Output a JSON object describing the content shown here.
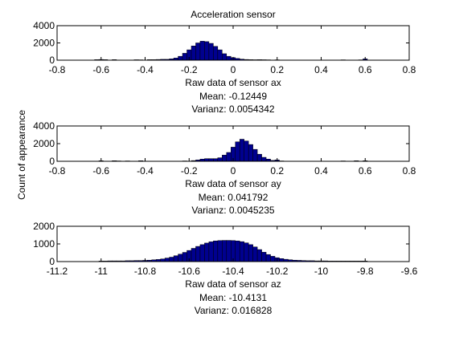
{
  "figure": {
    "title": "Acceleration sensor",
    "ylabel": "Count of appearance"
  },
  "chart_data": [
    {
      "type": "bar",
      "title": "Acceleration sensor",
      "xlabel": "Raw data of sensor ax",
      "ylabel": "Count of appearance",
      "stats": [
        "Mean: -0.12449",
        "Varianz: 0.0054342"
      ],
      "xlim": [
        -0.8,
        0.8
      ],
      "ylim": [
        0,
        4000
      ],
      "xticks": [
        -0.8,
        -0.6,
        -0.4,
        -0.2,
        0,
        0.2,
        0.4,
        0.6,
        0.8
      ],
      "xtick_labels": [
        "-0.8",
        "-0.6",
        "-0.4",
        "-0.2",
        "0",
        "0.2",
        "0.4",
        "0.6",
        "0.8"
      ],
      "yticks": [
        0,
        2000,
        4000
      ],
      "ytick_labels": [
        "0",
        "2000",
        "4000"
      ],
      "bar_color": "#00008F",
      "bin_width": 0.02,
      "x": [
        -0.62,
        -0.6,
        -0.58,
        -0.54,
        -0.44,
        -0.42,
        -0.38,
        -0.36,
        -0.34,
        -0.32,
        -0.3,
        -0.28,
        -0.26,
        -0.24,
        -0.22,
        -0.2,
        -0.18,
        -0.16,
        -0.14,
        -0.12,
        -0.1,
        -0.08,
        -0.06,
        -0.04,
        -0.02,
        0,
        0.02,
        0.04,
        0.06,
        0.08,
        0.1,
        0.12,
        0.14,
        0.16,
        0.2,
        0.5,
        0.58,
        0.6
      ],
      "values": [
        60,
        80,
        60,
        60,
        50,
        40,
        60,
        60,
        80,
        100,
        100,
        150,
        250,
        450,
        800,
        1200,
        1650,
        2000,
        2200,
        2150,
        1950,
        1600,
        1200,
        750,
        450,
        300,
        200,
        120,
        80,
        60,
        50,
        60,
        50,
        40,
        40,
        40,
        40,
        150
      ]
    },
    {
      "type": "bar",
      "xlabel": "Raw data of sensor ay",
      "stats": [
        "Mean: 0.041792",
        "Varianz: 0.0045235"
      ],
      "xlim": [
        -0.8,
        0.8
      ],
      "ylim": [
        0,
        4000
      ],
      "xticks": [
        -0.8,
        -0.6,
        -0.4,
        -0.2,
        0,
        0.2,
        0.4,
        0.6,
        0.8
      ],
      "xtick_labels": [
        "-0.8",
        "-0.6",
        "-0.4",
        "-0.2",
        "0",
        "0.2",
        "0.4",
        "0.6",
        "0.8"
      ],
      "yticks": [
        0,
        2000,
        4000
      ],
      "ytick_labels": [
        "0",
        "2000",
        "4000"
      ],
      "bar_color": "#00008F",
      "bin_width": 0.02,
      "x": [
        -0.6,
        -0.54,
        -0.52,
        -0.48,
        -0.42,
        -0.22,
        -0.18,
        -0.16,
        -0.14,
        -0.12,
        -0.1,
        -0.08,
        -0.06,
        -0.04,
        -0.02,
        0,
        0.02,
        0.04,
        0.06,
        0.08,
        0.1,
        0.12,
        0.14,
        0.16,
        0.18,
        0.2,
        0.22,
        0.5,
        0.56,
        0.6
      ],
      "values": [
        60,
        60,
        40,
        40,
        60,
        40,
        80,
        150,
        250,
        300,
        300,
        300,
        400,
        700,
        1000,
        1600,
        2200,
        2500,
        2300,
        1900,
        1350,
        800,
        450,
        250,
        100,
        150,
        40,
        40,
        60,
        60
      ]
    },
    {
      "type": "bar",
      "xlabel": "Raw data of sensor az",
      "stats": [
        "Mean: -10.4131",
        "Varianz: 0.016828"
      ],
      "xlim": [
        -11.2,
        -9.6
      ],
      "ylim": [
        0,
        2000
      ],
      "xticks": [
        -11.2,
        -11,
        -10.8,
        -10.6,
        -10.4,
        -10.2,
        -10,
        -9.8,
        -9.6
      ],
      "xtick_labels": [
        "-11.2",
        "-11",
        "-10.8",
        "-10.6",
        "-10.4",
        "-10.2",
        "-10",
        "-9.8",
        "-9.6"
      ],
      "yticks": [
        0,
        1000,
        2000
      ],
      "ytick_labels": [
        "0",
        "1000",
        "2000"
      ],
      "bar_color": "#00008F",
      "bin_width": 0.02,
      "x": [
        -11.0,
        -10.98,
        -10.96,
        -10.94,
        -10.92,
        -10.9,
        -10.88,
        -10.86,
        -10.84,
        -10.82,
        -10.8,
        -10.78,
        -10.76,
        -10.74,
        -10.72,
        -10.7,
        -10.68,
        -10.66,
        -10.64,
        -10.62,
        -10.6,
        -10.58,
        -10.56,
        -10.54,
        -10.52,
        -10.5,
        -10.48,
        -10.46,
        -10.44,
        -10.42,
        -10.4,
        -10.38,
        -10.36,
        -10.34,
        -10.32,
        -10.3,
        -10.28,
        -10.26,
        -10.24,
        -10.22,
        -10.2,
        -10.18,
        -10.16,
        -10.14,
        -10.12,
        -10.1,
        -10.08,
        -10.06,
        -10.04,
        -10.02,
        -10.0,
        -9.98,
        -9.96,
        -9.94,
        -9.92,
        -9.9,
        -9.88,
        -9.86,
        -9.84,
        -9.82,
        -9.8
      ],
      "values": [
        30,
        30,
        40,
        40,
        40,
        40,
        50,
        50,
        60,
        60,
        70,
        80,
        100,
        120,
        150,
        200,
        250,
        330,
        420,
        520,
        630,
        750,
        860,
        960,
        1050,
        1120,
        1170,
        1190,
        1200,
        1200,
        1190,
        1170,
        1130,
        1060,
        960,
        830,
        680,
        530,
        400,
        300,
        220,
        170,
        130,
        100,
        80,
        70,
        60,
        50,
        50,
        40,
        40,
        40,
        30,
        30,
        30,
        30,
        30,
        30,
        30,
        30,
        30
      ]
    }
  ]
}
